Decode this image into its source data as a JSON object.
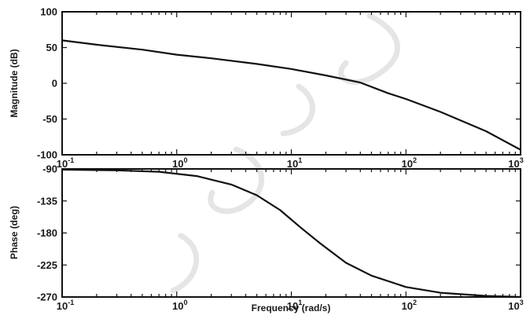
{
  "chart_data": [
    {
      "type": "line",
      "title": "",
      "xlabel": "",
      "ylabel": "Magnitude (dB)",
      "xscale": "log",
      "xlim": [
        0.1,
        1000
      ],
      "ylim": [
        -100,
        100
      ],
      "x_ticks": [
        "10^-1",
        "10^0",
        "10^1",
        "10^2",
        "10^3"
      ],
      "y_ticks": [
        "100",
        "50",
        "0",
        "-50",
        "-100"
      ],
      "grid": false,
      "series": [
        {
          "x": [
            0.1,
            0.2,
            0.5,
            1,
            2,
            5,
            10,
            20,
            40,
            70,
            100,
            200,
            500,
            1000
          ],
          "y": [
            60,
            54,
            47,
            40,
            35,
            27,
            20,
            11,
            1,
            -14,
            -22,
            -40,
            -67,
            -93
          ]
        }
      ]
    },
    {
      "type": "line",
      "title": "",
      "xlabel": "Frequency (rad/s)",
      "ylabel": "Phase (deg)",
      "xscale": "log",
      "xlim": [
        0.1,
        1000
      ],
      "ylim": [
        -270,
        -90
      ],
      "x_ticks": [
        "10^-1",
        "10^0",
        "10^1",
        "10^2",
        "10^3"
      ],
      "y_ticks": [
        "-90",
        "-135",
        "-180",
        "-225",
        "-270"
      ],
      "grid": false,
      "series": [
        {
          "x": [
            0.1,
            0.3,
            0.7,
            1.5,
            3,
            5,
            8,
            12,
            18,
            30,
            50,
            100,
            200,
            500,
            1000
          ],
          "y": [
            -91,
            -92,
            -94,
            -100,
            -112,
            -127,
            -148,
            -172,
            -195,
            -222,
            -240,
            -256,
            -264,
            -268.5,
            -270
          ]
        }
      ]
    }
  ]
}
